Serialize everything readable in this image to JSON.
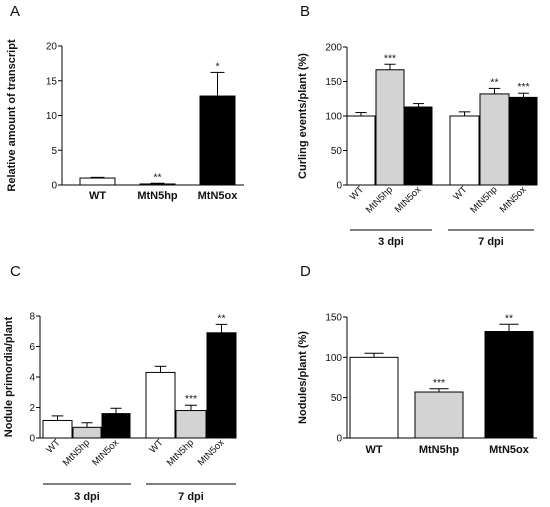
{
  "chart_data": [
    {
      "panel": "A",
      "type": "bar",
      "ylabel": "Relative amount of transcript",
      "ylim": [
        0,
        20
      ],
      "yticks": [
        0,
        5,
        10,
        15,
        20
      ],
      "categories": [
        "WT",
        "MtN5hp",
        "MtN5ox"
      ],
      "values": [
        1.0,
        0.15,
        12.8
      ],
      "errors": [
        0.1,
        0.1,
        3.4
      ],
      "significance": [
        "",
        "**",
        "*"
      ],
      "colors": [
        "#ffffff",
        "#d3d3d3",
        "#000000"
      ]
    },
    {
      "panel": "B",
      "type": "bar",
      "ylabel": "Curling events/plant (%)",
      "ylim": [
        0,
        200
      ],
      "yticks": [
        0,
        50,
        100,
        150,
        200
      ],
      "groups": [
        {
          "label": "3 dpi",
          "categories": [
            "WT",
            "MtN5hp",
            "MtN5ox"
          ],
          "values": [
            100,
            167,
            113
          ],
          "errors": [
            5,
            8,
            5
          ],
          "significance": [
            "",
            "***",
            ""
          ]
        },
        {
          "label": "7 dpi",
          "categories": [
            "WT",
            "MtN5hp",
            "MtN5ox"
          ],
          "values": [
            100,
            132,
            127
          ],
          "errors": [
            6,
            8,
            6
          ],
          "significance": [
            "",
            "**",
            "***"
          ]
        }
      ],
      "colors": [
        "#ffffff",
        "#d3d3d3",
        "#000000"
      ]
    },
    {
      "panel": "C",
      "type": "bar",
      "ylabel": "Nodule primordia/plant",
      "ylim": [
        0,
        8
      ],
      "yticks": [
        0,
        2,
        4,
        6,
        8
      ],
      "groups": [
        {
          "label": "3 dpi",
          "categories": [
            "WT",
            "MtN5hp",
            "MtN5ox"
          ],
          "values": [
            1.15,
            0.7,
            1.6
          ],
          "errors": [
            0.3,
            0.3,
            0.35
          ],
          "significance": [
            "",
            "",
            ""
          ]
        },
        {
          "label": "7 dpi",
          "categories": [
            "WT",
            "MtN5hp",
            "MtN5ox"
          ],
          "values": [
            4.3,
            1.8,
            6.9
          ],
          "errors": [
            0.4,
            0.35,
            0.55
          ],
          "significance": [
            "",
            "***",
            "**"
          ]
        }
      ],
      "colors": [
        "#ffffff",
        "#d3d3d3",
        "#000000"
      ]
    },
    {
      "panel": "D",
      "type": "bar",
      "ylabel": "Nodules/plant (%)",
      "ylim": [
        0,
        150
      ],
      "yticks": [
        0,
        50,
        100,
        150
      ],
      "categories": [
        "WT",
        "MtN5hp",
        "MtN5ox"
      ],
      "values": [
        100,
        57,
        132
      ],
      "errors": [
        5,
        4,
        9
      ],
      "significance": [
        "",
        "***",
        "**"
      ],
      "colors": [
        "#ffffff",
        "#d3d3d3",
        "#000000"
      ]
    }
  ]
}
